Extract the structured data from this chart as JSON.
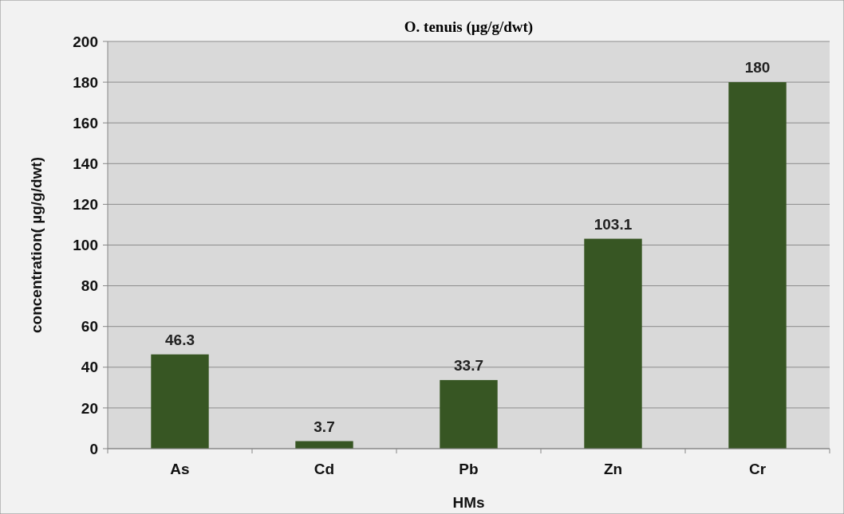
{
  "chart_data": {
    "type": "bar",
    "title": "O. tenuis (µg/g/dwt)",
    "xlabel": "HMs",
    "ylabel": "concentration(  µg/g/dwt)",
    "categories": [
      "As",
      "Cd",
      "Pb",
      "Zn",
      "Cr"
    ],
    "values": [
      46.3,
      3.7,
      33.7,
      103.1,
      180
    ],
    "color": "#375623",
    "ylim": [
      0,
      200
    ],
    "yticks": [
      0,
      20,
      40,
      60,
      80,
      100,
      120,
      140,
      160,
      180,
      200
    ],
    "grid": "y",
    "data_labels": true
  }
}
